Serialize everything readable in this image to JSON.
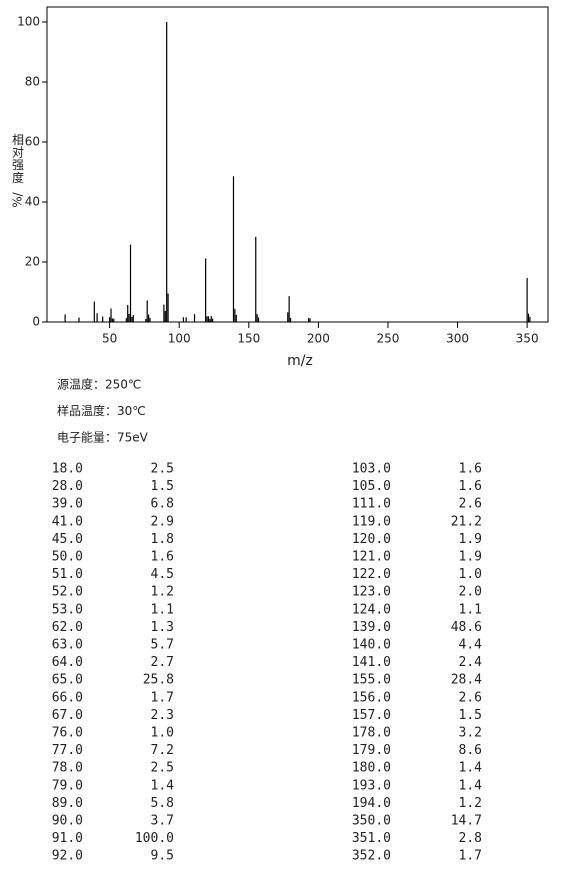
{
  "chart_data": {
    "type": "bar",
    "x_label": "m/z",
    "y_label": "相对强度",
    "y_label_unit": "%/",
    "xlim": [
      5,
      365
    ],
    "ylim": [
      0,
      105
    ],
    "xticks": [
      50,
      100,
      150,
      200,
      250,
      300,
      350
    ],
    "yticks": [
      0,
      20,
      40,
      60,
      80,
      100
    ],
    "color": "#000000",
    "x": [
      18,
      28,
      39,
      41,
      45,
      50,
      51,
      52,
      53,
      62,
      63,
      64,
      65,
      66,
      67,
      76,
      77,
      78,
      79,
      89,
      90,
      91,
      92,
      103,
      105,
      111,
      119,
      120,
      121,
      122,
      123,
      124,
      139,
      140,
      141,
      155,
      156,
      157,
      178,
      179,
      180,
      193,
      194,
      350,
      351,
      352
    ],
    "x_labels": [
      "18.0",
      "28.0",
      "39.0",
      "41.0",
      "45.0",
      "50.0",
      "51.0",
      "52.0",
      "53.0",
      "62.0",
      "63.0",
      "64.0",
      "65.0",
      "66.0",
      "67.0",
      "76.0",
      "77.0",
      "78.0",
      "79.0",
      "89.0",
      "90.0",
      "91.0",
      "92.0",
      "103.0",
      "105.0",
      "111.0",
      "119.0",
      "120.0",
      "121.0",
      "122.0",
      "123.0",
      "124.0",
      "139.0",
      "140.0",
      "141.0",
      "155.0",
      "156.0",
      "157.0",
      "178.0",
      "179.0",
      "180.0",
      "193.0",
      "194.0",
      "350.0",
      "351.0",
      "352.0"
    ],
    "values": [
      2.5,
      1.5,
      6.8,
      2.9,
      1.8,
      1.6,
      4.5,
      1.2,
      1.1,
      1.3,
      5.7,
      2.7,
      25.8,
      1.7,
      2.3,
      1.0,
      7.2,
      2.5,
      1.4,
      5.8,
      3.7,
      100.0,
      9.5,
      1.6,
      1.6,
      2.6,
      21.2,
      1.9,
      1.9,
      1.0,
      2.0,
      1.1,
      48.6,
      4.4,
      2.4,
      28.4,
      2.6,
      1.5,
      3.2,
      8.6,
      1.4,
      1.4,
      1.2,
      14.7,
      2.8,
      1.7
    ],
    "value_labels": [
      "2.5",
      "1.5",
      "6.8",
      "2.9",
      "1.8",
      "1.6",
      "4.5",
      "1.2",
      "1.1",
      "1.3",
      "5.7",
      "2.7",
      "25.8",
      "1.7",
      "2.3",
      "1.0",
      "7.2",
      "2.5",
      "1.4",
      "5.8",
      "3.7",
      "100.0",
      "9.5",
      "1.6",
      "1.6",
      "2.6",
      "21.2",
      "1.9",
      "1.9",
      "1.0",
      "2.0",
      "1.1",
      "48.6",
      "4.4",
      "2.4",
      "28.4",
      "2.6",
      "1.5",
      "3.2",
      "8.6",
      "1.4",
      "1.4",
      "1.2",
      "14.7",
      "2.8",
      "1.7"
    ]
  },
  "conditions": [
    "源温度：250℃",
    "样品温度：30℃",
    "电子能量：75eV"
  ]
}
